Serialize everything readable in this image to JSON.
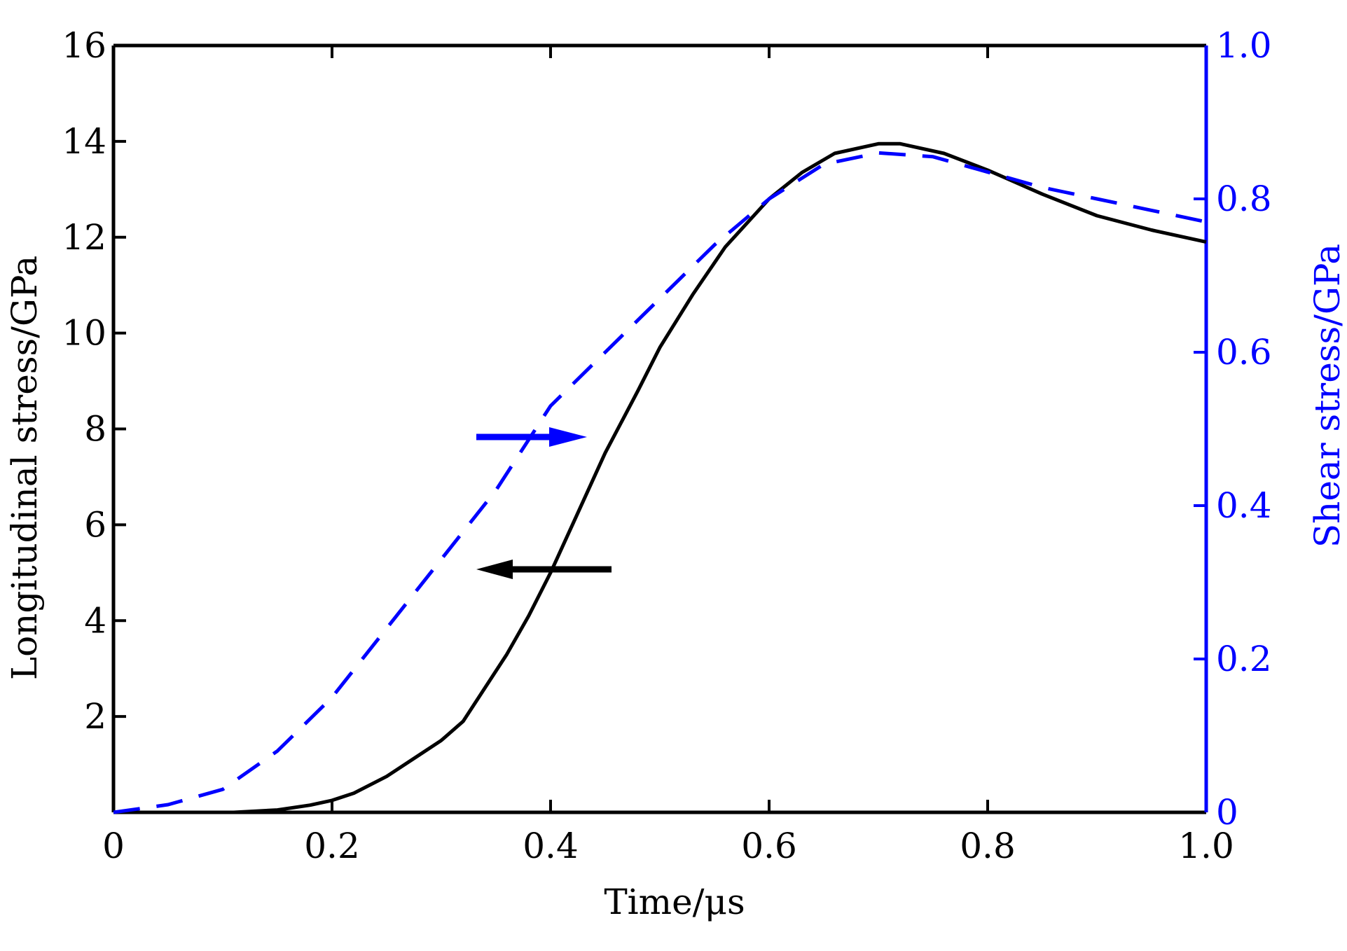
{
  "chart_data": {
    "type": "line",
    "xlabel": "Time/μs",
    "ylabel_left": "Longitudinal stress/GPa",
    "ylabel_right": "Shear stress/GPa",
    "xlim": [
      0,
      1.0
    ],
    "ylim_left": [
      0,
      16
    ],
    "ylim_right": [
      0,
      1.0
    ],
    "x_ticks": [
      "0",
      "0.2",
      "0.4",
      "0.6",
      "0.8",
      "1.0"
    ],
    "y_left_ticks": [
      "2",
      "4",
      "6",
      "8",
      "10",
      "12",
      "14",
      "16"
    ],
    "y_right_ticks": [
      "0",
      "0.2",
      "0.4",
      "0.6",
      "0.8",
      "1.0"
    ],
    "grid": false,
    "colors": {
      "longitudinal": "#000000",
      "shear": "#0000ff"
    },
    "series": [
      {
        "axis": "left",
        "style": "solid",
        "x": [
          0.11,
          0.15,
          0.18,
          0.2,
          0.22,
          0.25,
          0.28,
          0.3,
          0.32,
          0.34,
          0.36,
          0.38,
          0.4,
          0.42,
          0.45,
          0.48,
          0.5,
          0.53,
          0.56,
          0.6,
          0.63,
          0.66,
          0.7,
          0.72,
          0.76,
          0.8,
          0.85,
          0.9,
          0.95,
          1.0
        ],
        "y": [
          0.0,
          0.05,
          0.15,
          0.25,
          0.4,
          0.75,
          1.2,
          1.5,
          1.9,
          2.6,
          3.3,
          4.1,
          5.0,
          6.0,
          7.5,
          8.8,
          9.7,
          10.8,
          11.8,
          12.8,
          13.35,
          13.75,
          13.95,
          13.95,
          13.75,
          13.4,
          12.9,
          12.45,
          12.15,
          11.9
        ]
      },
      {
        "axis": "right",
        "style": "dashed",
        "x": [
          0.0,
          0.05,
          0.1,
          0.15,
          0.2,
          0.25,
          0.3,
          0.35,
          0.4,
          0.45,
          0.5,
          0.55,
          0.6,
          0.65,
          0.7,
          0.75,
          0.8,
          0.85,
          0.9,
          0.95,
          1.0
        ],
        "y": [
          0.0,
          0.01,
          0.03,
          0.08,
          0.15,
          0.24,
          0.33,
          0.42,
          0.53,
          0.6,
          0.67,
          0.74,
          0.8,
          0.845,
          0.86,
          0.855,
          0.835,
          0.815,
          0.8,
          0.785,
          0.77
        ]
      }
    ],
    "annotations": [
      {
        "type": "arrow",
        "direction": "right",
        "color": "#0000ff",
        "indicates": "right axis"
      },
      {
        "type": "arrow",
        "direction": "left",
        "color": "#000000",
        "indicates": "left axis"
      }
    ]
  }
}
